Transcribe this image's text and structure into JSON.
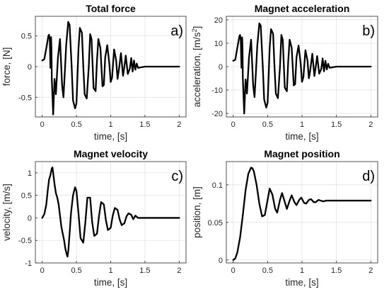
{
  "colors": {
    "line": "#000000",
    "grid": "#e3e3e3",
    "axis": "#262626"
  },
  "chart_data": [
    {
      "type": "line",
      "title": "Total force",
      "panel_label": "a)",
      "xlabel": "time, [s]",
      "ylabel": "force, [N]",
      "xlim": [
        -0.1,
        2.1
      ],
      "ylim": [
        -0.82,
        0.82
      ],
      "xticks": [
        0,
        0.5,
        1,
        1.5,
        2
      ],
      "xtick_labels": [
        "0",
        "0.5",
        "1",
        "1.5",
        "2"
      ],
      "yticks": [
        -0.5,
        0,
        0.5
      ],
      "ytick_labels": [
        "-0.5",
        "0",
        "0.5"
      ],
      "grid": true,
      "series": [
        {
          "x": [
            0.0,
            0.03,
            0.06,
            0.09,
            0.1,
            0.11,
            0.12,
            0.125,
            0.13,
            0.135,
            0.14,
            0.16,
            0.18,
            0.2,
            0.23,
            0.26,
            0.29,
            0.31,
            0.33,
            0.35,
            0.38,
            0.4,
            0.43,
            0.45,
            0.48,
            0.5,
            0.51,
            0.53,
            0.55,
            0.58,
            0.6,
            0.62,
            0.65,
            0.68,
            0.7,
            0.72,
            0.75,
            0.78,
            0.8,
            0.82,
            0.85,
            0.88,
            0.9,
            0.92,
            0.95,
            0.98,
            1.0,
            1.02,
            1.05,
            1.08,
            1.1,
            1.12,
            1.15,
            1.18,
            1.2,
            1.22,
            1.25,
            1.28,
            1.3,
            1.32,
            1.34,
            1.36,
            1.38,
            1.4,
            1.5,
            1.7,
            2.0
          ],
          "y": [
            0.1,
            0.12,
            0.3,
            0.5,
            0.52,
            0.45,
            -0.02,
            0.45,
            0.48,
            0.3,
            -0.2,
            -0.78,
            -0.2,
            -0.45,
            0.15,
            0.45,
            -0.3,
            -0.5,
            -0.1,
            0.35,
            0.73,
            0.68,
            0.0,
            -0.55,
            -0.68,
            -0.6,
            -0.3,
            0.3,
            0.63,
            0.55,
            0.0,
            -0.45,
            -0.52,
            0.0,
            0.53,
            0.45,
            -0.35,
            -0.4,
            0.1,
            0.45,
            0.3,
            -0.32,
            -0.3,
            0.15,
            0.35,
            0.05,
            -0.25,
            -0.18,
            0.28,
            0.1,
            -0.2,
            -0.05,
            0.22,
            -0.15,
            0.0,
            0.18,
            -0.12,
            -0.03,
            0.14,
            -0.08,
            0.1,
            -0.05,
            0.05,
            -0.02,
            0.0,
            0.0,
            0.0
          ]
        }
      ]
    },
    {
      "type": "line",
      "title": "Magnet acceleration",
      "panel_label": "b)",
      "xlabel": "time, [s]",
      "ylabel_main": "acceleration, [m/s",
      "ylabel_sup": "2",
      "ylabel_end": "]",
      "xlim": [
        -0.1,
        2.1
      ],
      "ylim": [
        -21.5,
        21.5
      ],
      "xticks": [
        0,
        0.5,
        1,
        1.5,
        2
      ],
      "xtick_labels": [
        "0",
        "0.5",
        "1",
        "1.5",
        "2"
      ],
      "yticks": [
        -20,
        -10,
        0,
        10,
        20
      ],
      "ytick_labels": [
        "-20",
        "-10",
        "0",
        "10",
        "20"
      ],
      "grid": true,
      "series": [
        {
          "x": [
            0.0,
            0.03,
            0.06,
            0.09,
            0.1,
            0.11,
            0.12,
            0.125,
            0.13,
            0.135,
            0.14,
            0.16,
            0.18,
            0.2,
            0.23,
            0.26,
            0.29,
            0.31,
            0.33,
            0.35,
            0.38,
            0.4,
            0.43,
            0.45,
            0.48,
            0.5,
            0.51,
            0.53,
            0.55,
            0.58,
            0.6,
            0.62,
            0.65,
            0.68,
            0.7,
            0.72,
            0.75,
            0.78,
            0.8,
            0.82,
            0.85,
            0.88,
            0.9,
            0.92,
            0.95,
            0.98,
            1.0,
            1.02,
            1.05,
            1.08,
            1.1,
            1.12,
            1.15,
            1.18,
            1.2,
            1.22,
            1.25,
            1.28,
            1.3,
            1.32,
            1.34,
            1.36,
            1.38,
            1.4,
            1.5,
            1.7,
            2.0
          ],
          "y": [
            2.5,
            3.0,
            8.0,
            13.0,
            13.5,
            11.5,
            -0.5,
            11.5,
            12.5,
            8.0,
            -5.0,
            -20.0,
            -5.5,
            -11.5,
            4.0,
            11.5,
            -8.0,
            -13.0,
            -2.5,
            9.0,
            18.5,
            17.5,
            0.0,
            -14.0,
            -17.5,
            -15.5,
            -8.0,
            8.0,
            16.0,
            14.0,
            0.0,
            -11.5,
            -13.5,
            0.0,
            13.5,
            11.5,
            -9.0,
            -10.5,
            2.5,
            11.5,
            8.0,
            -8.0,
            -7.5,
            4.0,
            9.0,
            1.5,
            -6.5,
            -4.5,
            7.0,
            2.5,
            -5.0,
            -1.5,
            5.5,
            -4.0,
            0.0,
            4.5,
            -3.0,
            -1.0,
            3.5,
            -2.0,
            2.5,
            -1.2,
            1.2,
            -0.5,
            0.0,
            0.0,
            0.0
          ]
        }
      ]
    },
    {
      "type": "line",
      "title": "Magnet velocity",
      "panel_label": "c)",
      "xlabel": "time, [s]",
      "ylabel": "velocity, [m/s]",
      "xlim": [
        -0.1,
        2.1
      ],
      "ylim": [
        -1.0,
        1.25
      ],
      "xticks": [
        0,
        0.5,
        1,
        1.5,
        2
      ],
      "xtick_labels": [
        "0",
        "0.5",
        "1",
        "1.5",
        "2"
      ],
      "yticks": [
        -1,
        -0.5,
        0,
        0.5,
        1
      ],
      "ytick_labels": [
        "-1",
        "-0.5",
        "0",
        "0.5",
        "1"
      ],
      "grid": true,
      "series": [
        {
          "x": [
            0.0,
            0.03,
            0.06,
            0.08,
            0.1,
            0.12,
            0.14,
            0.15,
            0.16,
            0.18,
            0.2,
            0.22,
            0.24,
            0.26,
            0.28,
            0.3,
            0.32,
            0.34,
            0.36,
            0.37,
            0.38,
            0.4,
            0.42,
            0.45,
            0.48,
            0.5,
            0.53,
            0.56,
            0.6,
            0.63,
            0.66,
            0.7,
            0.73,
            0.76,
            0.8,
            0.83,
            0.86,
            0.9,
            0.93,
            0.96,
            1.0,
            1.03,
            1.06,
            1.1,
            1.13,
            1.16,
            1.2,
            1.23,
            1.26,
            1.3,
            1.33,
            1.36,
            1.4,
            1.5,
            1.7,
            2.0
          ],
          "y": [
            0.0,
            0.08,
            0.3,
            0.6,
            0.85,
            0.95,
            1.1,
            1.12,
            1.0,
            0.75,
            0.55,
            0.45,
            0.3,
            0.05,
            -0.2,
            -0.35,
            -0.5,
            -0.7,
            -0.82,
            -0.86,
            -0.75,
            -0.35,
            0.1,
            0.5,
            0.68,
            0.6,
            0.1,
            -0.45,
            -0.55,
            -0.1,
            0.45,
            0.45,
            -0.1,
            -0.4,
            -0.35,
            0.05,
            0.35,
            0.3,
            -0.05,
            -0.27,
            -0.22,
            0.05,
            0.22,
            0.18,
            -0.03,
            -0.16,
            -0.12,
            0.03,
            0.1,
            0.07,
            -0.03,
            0.05,
            0.0,
            0.0,
            0.0,
            0.0
          ]
        }
      ]
    },
    {
      "type": "line",
      "title": "Magnet position",
      "panel_label": "d)",
      "xlabel": "time, [s]",
      "ylabel": "position, [m]",
      "xlim": [
        -0.1,
        2.1
      ],
      "ylim": [
        -0.004,
        0.131
      ],
      "xticks": [
        0,
        0.5,
        1,
        1.5,
        2
      ],
      "xtick_labels": [
        "0",
        "0.5",
        "1",
        "1.5",
        "2"
      ],
      "yticks": [
        0,
        0.05,
        0.1
      ],
      "ytick_labels": [
        "0",
        "0.05",
        "0.1"
      ],
      "grid": true,
      "series": [
        {
          "x": [
            0.0,
            0.03,
            0.06,
            0.1,
            0.14,
            0.18,
            0.22,
            0.26,
            0.28,
            0.3,
            0.34,
            0.38,
            0.42,
            0.46,
            0.5,
            0.53,
            0.57,
            0.61,
            0.64,
            0.68,
            0.71,
            0.75,
            0.78,
            0.82,
            0.85,
            0.89,
            0.92,
            0.96,
            0.99,
            1.03,
            1.06,
            1.1,
            1.13,
            1.17,
            1.2,
            1.24,
            1.27,
            1.31,
            1.35,
            1.4,
            1.5,
            1.7,
            2.0
          ],
          "y": [
            0.0,
            0.002,
            0.01,
            0.03,
            0.06,
            0.093,
            0.115,
            0.123,
            0.122,
            0.118,
            0.1,
            0.075,
            0.058,
            0.06,
            0.08,
            0.095,
            0.087,
            0.068,
            0.063,
            0.08,
            0.089,
            0.077,
            0.068,
            0.079,
            0.086,
            0.077,
            0.073,
            0.08,
            0.083,
            0.076,
            0.075,
            0.08,
            0.081,
            0.077,
            0.077,
            0.08,
            0.079,
            0.078,
            0.079,
            0.079,
            0.079,
            0.079,
            0.079
          ]
        }
      ]
    }
  ]
}
